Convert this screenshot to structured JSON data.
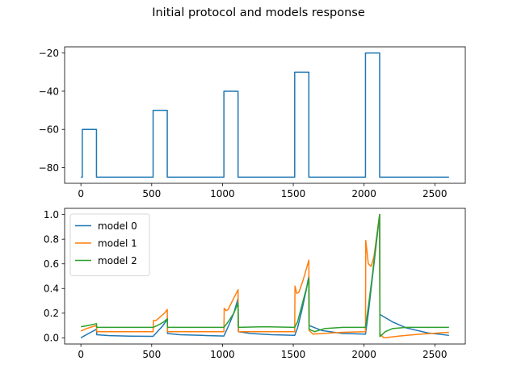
{
  "figure": {
    "title": "Initial protocol and models response"
  },
  "chart_data": [
    {
      "type": "line",
      "title": "",
      "xlabel": "",
      "ylabel": "",
      "xlim": [
        -115,
        2715
      ],
      "ylim": [
        -88.25,
        -16.75
      ],
      "xticks": [
        0,
        500,
        1000,
        1500,
        2000,
        2500
      ],
      "yticks": [
        -80,
        -60,
        -40,
        -20
      ],
      "grid": false,
      "legend": "none",
      "series": [
        {
          "color": "#1f77b4",
          "points": [
            [
              0,
              -85
            ],
            [
              10,
              -85
            ],
            [
              10,
              -60
            ],
            [
              110,
              -60
            ],
            [
              110,
              -85
            ],
            [
              510,
              -85
            ],
            [
              510,
              -50
            ],
            [
              610,
              -50
            ],
            [
              610,
              -85
            ],
            [
              1010,
              -85
            ],
            [
              1010,
              -40
            ],
            [
              1110,
              -40
            ],
            [
              1110,
              -85
            ],
            [
              1510,
              -85
            ],
            [
              1510,
              -30
            ],
            [
              1610,
              -30
            ],
            [
              1610,
              -85
            ],
            [
              2010,
              -85
            ],
            [
              2010,
              -20
            ],
            [
              2110,
              -20
            ],
            [
              2110,
              -85
            ],
            [
              2600,
              -85
            ]
          ]
        }
      ]
    },
    {
      "type": "line",
      "title": "",
      "xlabel": "",
      "ylabel": "",
      "xlim": [
        -115,
        2715
      ],
      "ylim": [
        -0.05,
        1.05
      ],
      "xticks": [
        0,
        500,
        1000,
        1500,
        2000,
        2500
      ],
      "yticks": [
        0.0,
        0.2,
        0.4,
        0.6,
        0.8,
        1.0
      ],
      "ytick_labels": [
        "0.0",
        "0.2",
        "0.4",
        "0.6",
        "0.8",
        "1.0"
      ],
      "grid": false,
      "legend": "top-left",
      "series": [
        {
          "name": "model 0",
          "color": "#1f77b4",
          "points": [
            [
              0,
              0.0
            ],
            [
              30,
              0.02
            ],
            [
              70,
              0.045
            ],
            [
              110,
              0.07
            ],
            [
              112,
              0.025
            ],
            [
              200,
              0.018
            ],
            [
              350,
              0.014
            ],
            [
              510,
              0.012
            ],
            [
              540,
              0.05
            ],
            [
              580,
              0.1
            ],
            [
              610,
              0.15
            ],
            [
              612,
              0.035
            ],
            [
              700,
              0.025
            ],
            [
              850,
              0.02
            ],
            [
              1010,
              0.015
            ],
            [
              1040,
              0.09
            ],
            [
              1080,
              0.2
            ],
            [
              1110,
              0.32
            ],
            [
              1112,
              0.05
            ],
            [
              1200,
              0.035
            ],
            [
              1350,
              0.025
            ],
            [
              1510,
              0.02
            ],
            [
              1530,
              0.08
            ],
            [
              1560,
              0.22
            ],
            [
              1590,
              0.38
            ],
            [
              1610,
              0.5
            ],
            [
              1612,
              0.1
            ],
            [
              1700,
              0.06
            ],
            [
              1850,
              0.035
            ],
            [
              2010,
              0.03
            ],
            [
              2030,
              0.2
            ],
            [
              2060,
              0.5
            ],
            [
              2090,
              0.8
            ],
            [
              2110,
              1.0
            ],
            [
              2112,
              0.19
            ],
            [
              2200,
              0.13
            ],
            [
              2300,
              0.08
            ],
            [
              2450,
              0.04
            ],
            [
              2600,
              0.02
            ]
          ]
        },
        {
          "name": "model 1",
          "color": "#ff7f0e",
          "points": [
            [
              0,
              0.055
            ],
            [
              40,
              0.075
            ],
            [
              80,
              0.09
            ],
            [
              110,
              0.1
            ],
            [
              112,
              0.05
            ],
            [
              300,
              0.05
            ],
            [
              510,
              0.05
            ],
            [
              512,
              0.14
            ],
            [
              530,
              0.14
            ],
            [
              560,
              0.17
            ],
            [
              590,
              0.2
            ],
            [
              610,
              0.23
            ],
            [
              612,
              0.05
            ],
            [
              800,
              0.05
            ],
            [
              1010,
              0.05
            ],
            [
              1012,
              0.24
            ],
            [
              1025,
              0.22
            ],
            [
              1040,
              0.23
            ],
            [
              1070,
              0.3
            ],
            [
              1110,
              0.39
            ],
            [
              1112,
              0.05
            ],
            [
              1300,
              0.05
            ],
            [
              1510,
              0.05
            ],
            [
              1512,
              0.42
            ],
            [
              1525,
              0.36
            ],
            [
              1540,
              0.37
            ],
            [
              1570,
              0.47
            ],
            [
              1610,
              0.63
            ],
            [
              1612,
              0.06
            ],
            [
              1640,
              0.03
            ],
            [
              1700,
              0.035
            ],
            [
              1850,
              0.045
            ],
            [
              2010,
              0.05
            ],
            [
              2012,
              0.79
            ],
            [
              2030,
              0.6
            ],
            [
              2050,
              0.58
            ],
            [
              2070,
              0.66
            ],
            [
              2110,
              1.0
            ],
            [
              2112,
              0.03
            ],
            [
              2140,
              0.0
            ],
            [
              2250,
              0.015
            ],
            [
              2400,
              0.03
            ],
            [
              2600,
              0.045
            ]
          ]
        },
        {
          "name": "model 2",
          "color": "#2ca02c",
          "points": [
            [
              0,
              0.09
            ],
            [
              50,
              0.1
            ],
            [
              110,
              0.115
            ],
            [
              112,
              0.085
            ],
            [
              510,
              0.085
            ],
            [
              540,
              0.1
            ],
            [
              580,
              0.125
            ],
            [
              610,
              0.155
            ],
            [
              612,
              0.085
            ],
            [
              1010,
              0.085
            ],
            [
              1040,
              0.13
            ],
            [
              1080,
              0.2
            ],
            [
              1110,
              0.28
            ],
            [
              1112,
              0.085
            ],
            [
              1300,
              0.09
            ],
            [
              1510,
              0.085
            ],
            [
              1530,
              0.13
            ],
            [
              1560,
              0.26
            ],
            [
              1590,
              0.39
            ],
            [
              1610,
              0.48
            ],
            [
              1612,
              0.07
            ],
            [
              1650,
              0.05
            ],
            [
              1720,
              0.075
            ],
            [
              1850,
              0.085
            ],
            [
              2010,
              0.085
            ],
            [
              2030,
              0.25
            ],
            [
              2060,
              0.52
            ],
            [
              2090,
              0.82
            ],
            [
              2110,
              1.0
            ],
            [
              2112,
              0.01
            ],
            [
              2150,
              0.05
            ],
            [
              2200,
              0.075
            ],
            [
              2300,
              0.085
            ],
            [
              2600,
              0.085
            ]
          ]
        }
      ]
    }
  ]
}
